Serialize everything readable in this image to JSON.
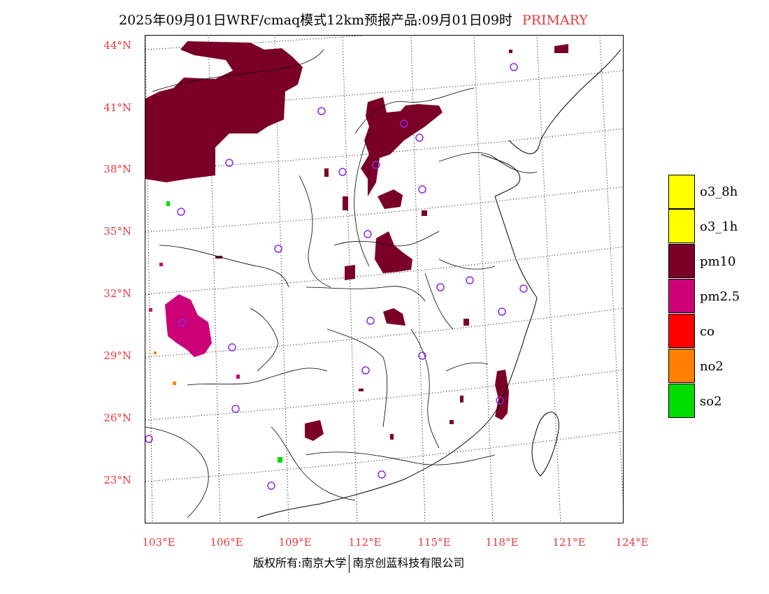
{
  "header": {
    "title": "2025年09月01日WRF/cmaq模式12km预报产品:09月01日09时",
    "tag": "PRIMARY"
  },
  "map": {
    "lat_labels": [
      "44°N",
      "41°N",
      "38°N",
      "35°N",
      "32°N",
      "29°N",
      "26°N",
      "23°N"
    ],
    "lon_labels": [
      "103°E",
      "106°E",
      "109°E",
      "112°E",
      "115°E",
      "118°E",
      "121°E",
      "124°E"
    ],
    "pollutant_colors": {
      "pm10": "#7b0028",
      "pm25": "#cc0077",
      "so2": "#00dd00",
      "no2": "#ff8000"
    }
  },
  "legend": {
    "items": [
      {
        "label": "o3_8h",
        "color": "#ffff00"
      },
      {
        "label": "o3_1h",
        "color": "#ffff00"
      },
      {
        "label": "pm10",
        "color": "#7b0028"
      },
      {
        "label": "pm2.5",
        "color": "#cc0077"
      },
      {
        "label": "co",
        "color": "#ff0000"
      },
      {
        "label": "no2",
        "color": "#ff8000"
      },
      {
        "label": "so2",
        "color": "#00dd00"
      }
    ]
  },
  "footer": {
    "left": "版权所有:南京大学",
    "right": "南京创蓝科技有限公司"
  }
}
